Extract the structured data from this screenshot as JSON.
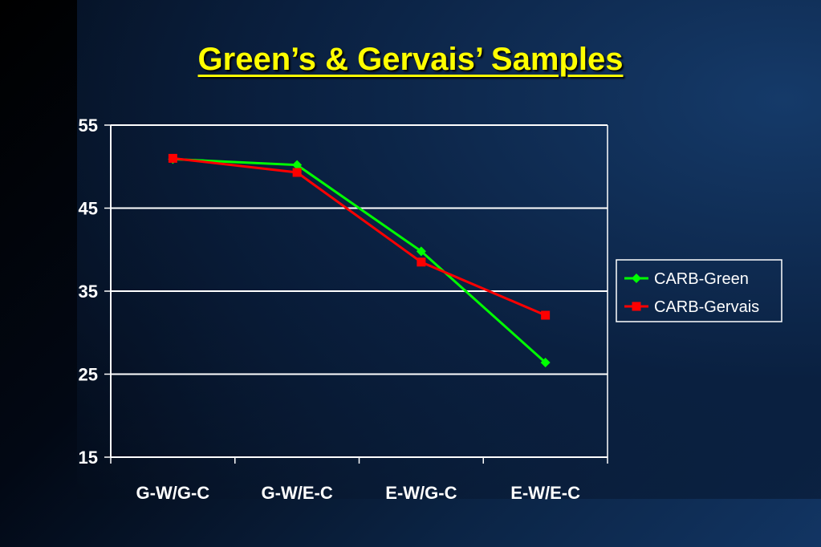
{
  "slide": {
    "title": "Green’s & Gervais’ Samples"
  },
  "colors": {
    "title": "#ffff00",
    "green_series": "#00ff00",
    "gervais_series": "#ff0000",
    "gridline": "#ffffff",
    "text": "#ffffff"
  },
  "chart_data": {
    "type": "line",
    "title": "",
    "xlabel": "",
    "ylabel": "",
    "categories": [
      "G-W/G-C",
      "G-W/E-C",
      "E-W/G-C",
      "E-W/E-C"
    ],
    "yticks": [
      15,
      25,
      35,
      45,
      55
    ],
    "ylim": [
      15,
      55
    ],
    "grid": true,
    "legend_position": "right",
    "series": [
      {
        "name": "CARB-Green",
        "marker": "diamond",
        "color": "#00ff00",
        "values": [
          50.9,
          50.2,
          39.8,
          26.4
        ]
      },
      {
        "name": "CARB-Gervais",
        "marker": "square",
        "color": "#ff0000",
        "values": [
          51.0,
          49.3,
          38.5,
          32.1
        ]
      }
    ]
  }
}
